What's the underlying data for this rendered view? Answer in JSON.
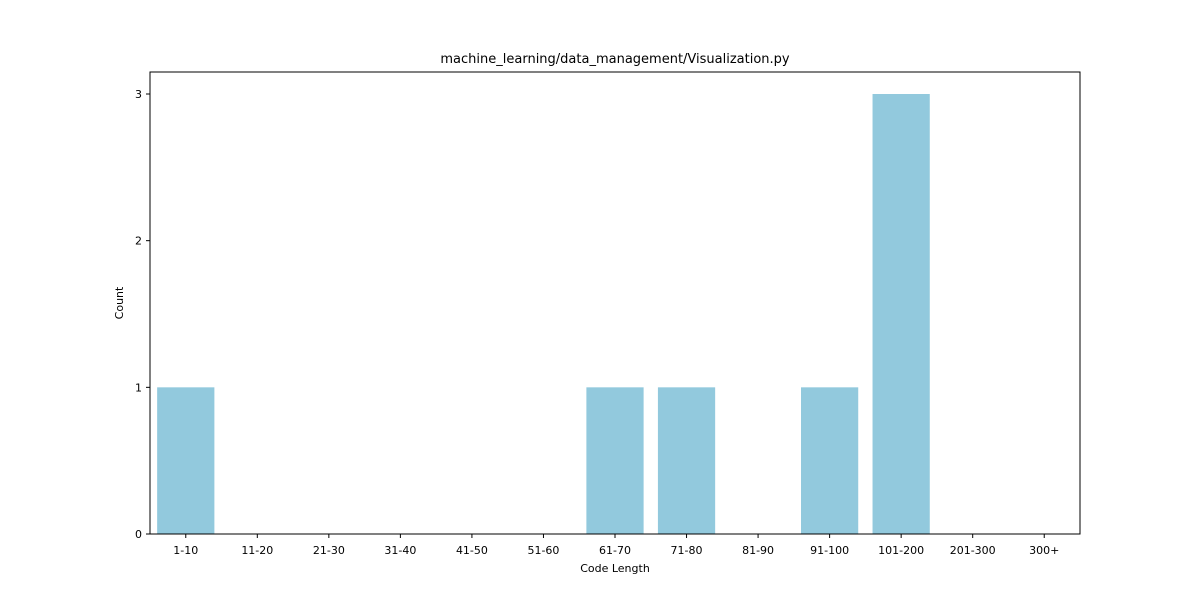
{
  "chart_data": {
    "type": "bar",
    "title": "machine_learning/data_management/Visualization.py",
    "xlabel": "Code Length",
    "ylabel": "Count",
    "categories": [
      "1-10",
      "11-20",
      "21-30",
      "31-40",
      "41-50",
      "51-60",
      "61-70",
      "71-80",
      "81-90",
      "91-100",
      "101-200",
      "201-300",
      "300+"
    ],
    "values": [
      1,
      0,
      0,
      0,
      0,
      0,
      1,
      1,
      0,
      1,
      3,
      0,
      0
    ],
    "ylim": [
      0,
      3.15
    ],
    "yticks": [
      0,
      1,
      2,
      3
    ],
    "bar_color": "#92c9dd",
    "grid": false,
    "legend": "none"
  }
}
